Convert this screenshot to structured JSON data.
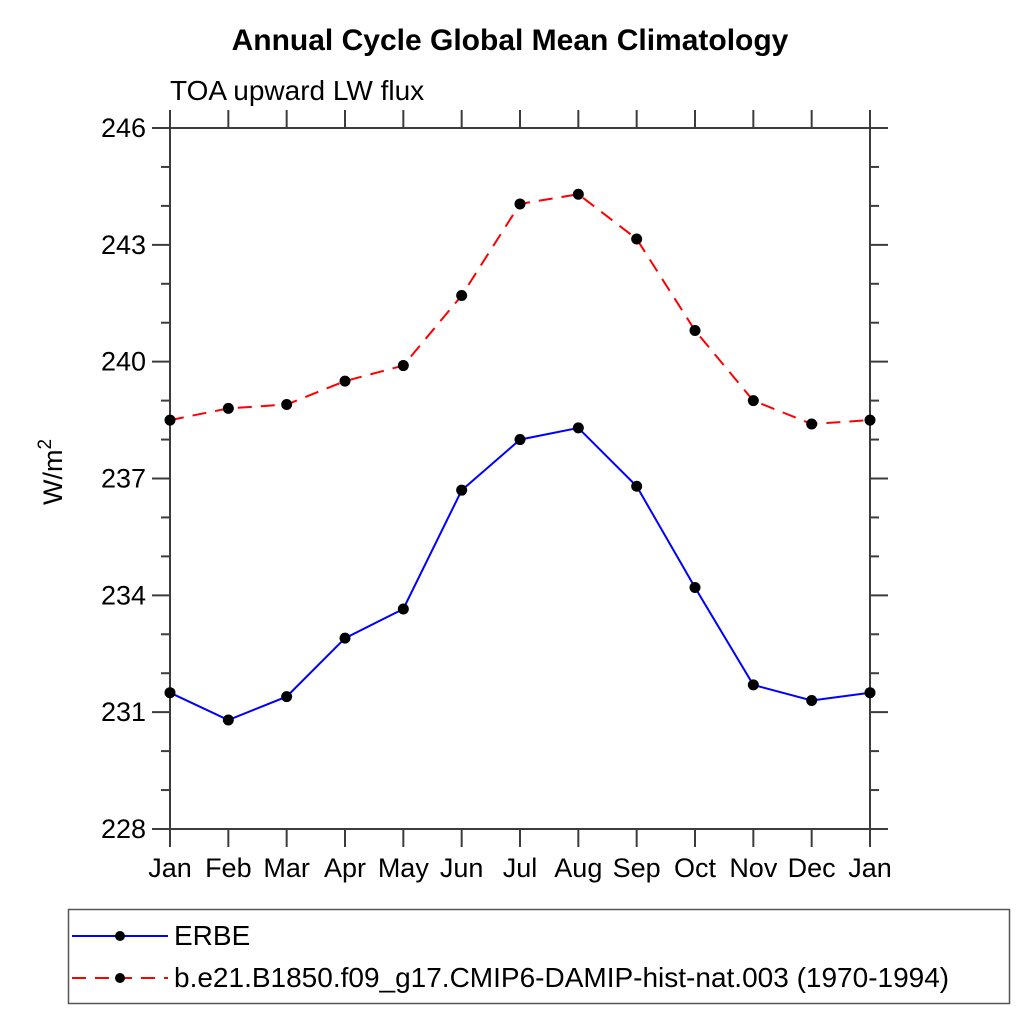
{
  "title": "Annual Cycle Global Mean Climatology",
  "subtitle": "TOA upward LW flux",
  "colors": {
    "background": "#ffffff",
    "axis": "#3c3c3c",
    "text": "#000000",
    "legend_border": "#555555",
    "erbe_line": "#0000ff",
    "model_line": "#ff0000",
    "marker": "#000000"
  },
  "chart_data": {
    "type": "line",
    "title": "Annual Cycle Global Mean Climatology",
    "subtitle": "TOA upward LW flux",
    "xlabel": "",
    "ylabel": "W/m²",
    "ylabel_base": "W/m",
    "ylabel_exponent": "2",
    "categories": [
      "Jan",
      "Feb",
      "Mar",
      "Apr",
      "May",
      "Jun",
      "Jul",
      "Aug",
      "Sep",
      "Oct",
      "Nov",
      "Dec",
      "Jan"
    ],
    "ylim": [
      228,
      246
    ],
    "yticks_major": [
      228,
      231,
      234,
      237,
      240,
      243,
      246
    ],
    "ytick_labels": [
      "228",
      "231",
      "234",
      "237",
      "240",
      "243",
      "246"
    ],
    "yticks_minor_step": 1,
    "grid": false,
    "legend_position": "bottom-left-box",
    "series": [
      {
        "name": "ERBE",
        "line_color": "#0000ff",
        "line_style": "solid",
        "line_width": 2,
        "marker": "filled-circle",
        "marker_color": "#000000",
        "values": [
          231.5,
          230.8,
          231.4,
          232.9,
          233.65,
          236.7,
          238.0,
          238.3,
          236.8,
          234.2,
          231.7,
          231.3,
          231.5
        ]
      },
      {
        "name": "b.e21.B1850.f09_g17.CMIP6-DAMIP-hist-nat.003 (1970-1994)",
        "line_color": "#ff0000",
        "line_style": "dashed",
        "line_width": 2,
        "marker": "filled-circle",
        "marker_color": "#000000",
        "values": [
          238.5,
          238.8,
          238.9,
          239.5,
          239.9,
          241.7,
          244.05,
          244.3,
          243.15,
          240.8,
          239.0,
          238.4,
          238.5
        ]
      }
    ]
  }
}
